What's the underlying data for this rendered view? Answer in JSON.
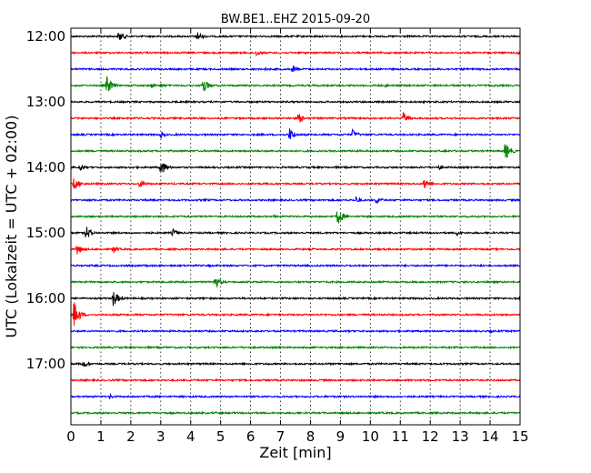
{
  "chart_data": {
    "type": "line",
    "title": "BW.BE1..EHZ 2015-09-20",
    "xlabel": "Zeit  [min]",
    "ylabel": "UTC (Lokalzeit = UTC + 02:00)",
    "xlim": [
      0,
      15
    ],
    "x_ticks": [
      "0",
      "1",
      "2",
      "3",
      "4",
      "5",
      "6",
      "7",
      "8",
      "9",
      "10",
      "11",
      "12",
      "13",
      "14",
      "15"
    ],
    "y_tick_labels": [
      "12:00",
      "13:00",
      "14:00",
      "15:00",
      "16:00",
      "17:00"
    ],
    "grid": "vertical dotted at each minute",
    "trace_colors": [
      "#000000",
      "#ff0000",
      "#0000ff",
      "#008000"
    ],
    "traces": [
      {
        "start": "12:00",
        "color": "#000000",
        "events": [
          [
            1.6,
            7
          ],
          [
            4.2,
            7
          ]
        ]
      },
      {
        "start": "12:15",
        "color": "#ff0000",
        "events": [
          [
            6.2,
            4
          ],
          [
            14.9,
            3
          ]
        ]
      },
      {
        "start": "12:30",
        "color": "#0000ff",
        "events": [
          [
            7.4,
            5
          ],
          [
            6.5,
            2
          ]
        ]
      },
      {
        "start": "12:45",
        "color": "#008000",
        "events": [
          [
            1.2,
            11
          ],
          [
            2.7,
            3
          ],
          [
            3.0,
            3
          ],
          [
            4.4,
            10
          ],
          [
            10.5,
            2
          ]
        ]
      },
      {
        "start": "13:00",
        "color": "#000000",
        "events": []
      },
      {
        "start": "13:15",
        "color": "#ff0000",
        "events": [
          [
            7.6,
            6
          ],
          [
            11.1,
            7
          ]
        ]
      },
      {
        "start": "13:30",
        "color": "#0000ff",
        "events": [
          [
            3.0,
            4
          ],
          [
            7.3,
            8
          ],
          [
            9.4,
            6
          ]
        ]
      },
      {
        "start": "13:45",
        "color": "#008000",
        "events": [
          [
            14.5,
            11
          ],
          [
            12.5,
            2
          ]
        ]
      },
      {
        "start": "14:00",
        "color": "#000000",
        "events": [
          [
            0.3,
            5
          ],
          [
            3.0,
            10
          ],
          [
            12.3,
            3
          ]
        ]
      },
      {
        "start": "14:15",
        "color": "#ff0000",
        "events": [
          [
            0.1,
            8
          ],
          [
            2.3,
            5
          ],
          [
            11.8,
            8
          ]
        ]
      },
      {
        "start": "14:30",
        "color": "#0000ff",
        "events": [
          [
            4.5,
            2
          ],
          [
            9.5,
            5
          ],
          [
            10.2,
            5
          ]
        ]
      },
      {
        "start": "14:45",
        "color": "#008000",
        "events": [
          [
            8.9,
            10
          ],
          [
            6.8,
            2
          ]
        ]
      },
      {
        "start": "15:00",
        "color": "#000000",
        "events": [
          [
            0.5,
            9
          ],
          [
            3.4,
            5
          ],
          [
            12.9,
            4
          ]
        ]
      },
      {
        "start": "15:15",
        "color": "#ff0000",
        "events": [
          [
            0.2,
            7
          ],
          [
            1.4,
            5
          ]
        ]
      },
      {
        "start": "15:30",
        "color": "#0000ff",
        "events": [
          [
            2.5,
            2
          ],
          [
            4.6,
            2
          ]
        ]
      },
      {
        "start": "15:45",
        "color": "#008000",
        "events": [
          [
            4.8,
            8
          ],
          [
            10.0,
            2
          ]
        ]
      },
      {
        "start": "16:00",
        "color": "#000000",
        "events": [
          [
            1.4,
            11
          ],
          [
            15.0,
            4
          ]
        ]
      },
      {
        "start": "16:15",
        "color": "#ff0000",
        "events": [
          [
            0.1,
            16
          ]
        ]
      },
      {
        "start": "16:30",
        "color": "#0000ff",
        "events": [
          [
            14.0,
            2
          ]
        ]
      },
      {
        "start": "16:45",
        "color": "#008000",
        "events": []
      },
      {
        "start": "17:00",
        "color": "#000000",
        "events": [
          [
            0.4,
            5
          ]
        ]
      },
      {
        "start": "17:15",
        "color": "#ff0000",
        "events": []
      },
      {
        "start": "17:30",
        "color": "#0000ff",
        "events": [
          [
            1.3,
            3
          ]
        ]
      },
      {
        "start": "17:45",
        "color": "#008000",
        "events": []
      }
    ]
  }
}
